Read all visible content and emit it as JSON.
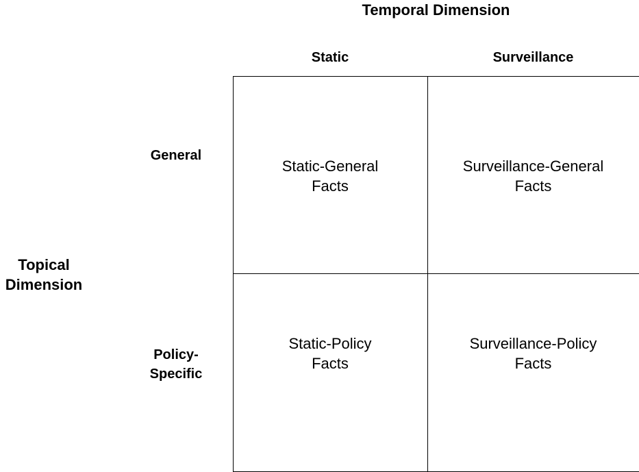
{
  "temporal_dimension": {
    "title": "Temporal Dimension",
    "columns": [
      "Static",
      "Surveillance"
    ]
  },
  "topical_dimension": {
    "title_lines": [
      "Topical",
      "Dimension"
    ],
    "rows": [
      {
        "lines": [
          "General"
        ]
      },
      {
        "lines": [
          "Policy-",
          "Specific"
        ]
      }
    ]
  },
  "cells": [
    {
      "lines": [
        "Static-General",
        "Facts"
      ]
    },
    {
      "lines": [
        "Surveillance-General",
        "Facts"
      ]
    },
    {
      "lines": [
        "Static-Policy",
        "Facts"
      ]
    },
    {
      "lines": [
        "Surveillance-Policy",
        "Facts"
      ]
    }
  ]
}
